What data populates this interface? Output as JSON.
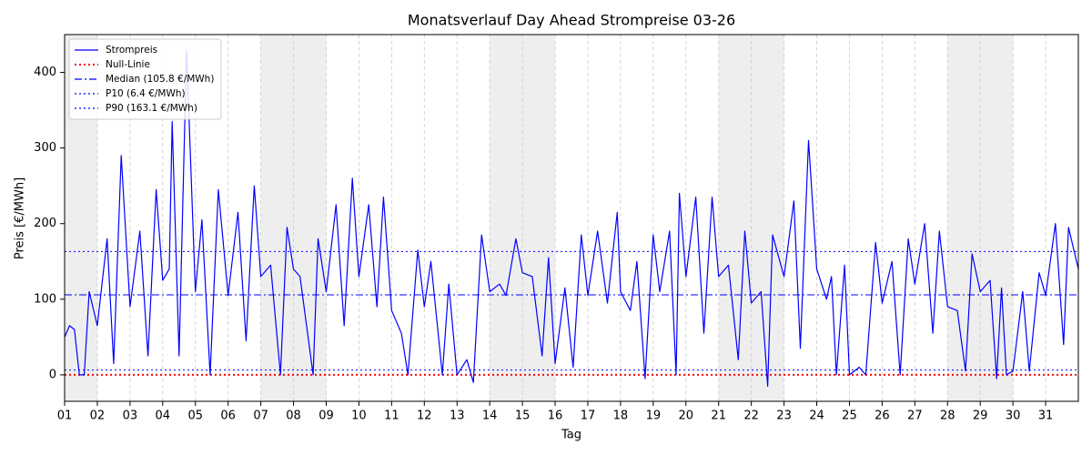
{
  "chart_data": {
    "type": "line",
    "title": "Monatsverlauf Day Ahead Strompreise 03-26",
    "xlabel": "Tag",
    "ylabel": "Preis [€/MWh]",
    "x": [
      1.0,
      1.15,
      1.3,
      1.45,
      1.6,
      1.75,
      2.0,
      2.3,
      2.5,
      2.73,
      3.0,
      3.3,
      3.55,
      3.8,
      4.0,
      4.2,
      4.29,
      4.5,
      4.73,
      5.0,
      5.2,
      5.45,
      5.7,
      6.0,
      6.3,
      6.55,
      6.8,
      7.0,
      7.3,
      7.6,
      7.8,
      8.0,
      8.2,
      8.6,
      8.75,
      9.0,
      9.3,
      9.55,
      9.8,
      10.0,
      10.3,
      10.55,
      10.75,
      11.0,
      11.3,
      11.5,
      11.8,
      12.0,
      12.2,
      12.55,
      12.75,
      13.0,
      13.3,
      13.5,
      13.75,
      14.0,
      14.3,
      14.5,
      14.8,
      15.0,
      15.3,
      15.6,
      15.8,
      16.0,
      16.3,
      16.55,
      16.8,
      17.0,
      17.3,
      17.6,
      17.9,
      18.0,
      18.3,
      18.5,
      18.75,
      19.0,
      19.2,
      19.5,
      19.7,
      19.8,
      20.0,
      20.3,
      20.55,
      20.8,
      21.0,
      21.3,
      21.6,
      21.8,
      22.0,
      22.3,
      22.5,
      22.65,
      23.0,
      23.3,
      23.5,
      23.75,
      24.0,
      24.3,
      24.45,
      24.6,
      24.85,
      25.0,
      25.3,
      25.5,
      25.8,
      26.0,
      26.3,
      26.55,
      26.8,
      27.0,
      27.3,
      27.55,
      27.75,
      28.0,
      28.3,
      28.55,
      28.75,
      29.0,
      29.3,
      29.5,
      29.65,
      29.8,
      30.0,
      30.3,
      30.5,
      30.8,
      31.0,
      31.3,
      31.55,
      31.7,
      32.0
    ],
    "series": [
      {
        "name": "Strompreis",
        "color": "#0000ff",
        "values": [
          50,
          65,
          60,
          0,
          0,
          110,
          65,
          180,
          15,
          290,
          90,
          190,
          25,
          245,
          125,
          140,
          335,
          25,
          430,
          110,
          205,
          0,
          245,
          105,
          215,
          45,
          250,
          130,
          145,
          0,
          195,
          140,
          130,
          0,
          180,
          110,
          225,
          65,
          260,
          130,
          225,
          90,
          235,
          85,
          55,
          0,
          165,
          90,
          150,
          0,
          120,
          0,
          20,
          -10,
          185,
          110,
          120,
          105,
          180,
          135,
          130,
          25,
          155,
          15,
          115,
          10,
          185,
          105,
          190,
          95,
          215,
          110,
          85,
          150,
          -5,
          185,
          110,
          190,
          0,
          240,
          130,
          235,
          55,
          235,
          130,
          145,
          20,
          190,
          95,
          110,
          -15,
          185,
          130,
          230,
          35,
          310,
          140,
          100,
          130,
          0,
          145,
          0,
          10,
          0,
          175,
          95,
          150,
          0,
          180,
          120,
          200,
          55,
          190,
          90,
          85,
          5,
          160,
          110,
          125,
          -5,
          115,
          0,
          5,
          110,
          5,
          135,
          105,
          200,
          40,
          195,
          140
        ]
      }
    ],
    "hlines": [
      {
        "name": "Null-Linie",
        "value": 0,
        "color": "#ff0000",
        "style": "dotted"
      },
      {
        "name": "Median (105.8 €/MWh)",
        "value": 105.8,
        "color": "#0000ff",
        "style": "dashdot"
      },
      {
        "name": "P10 (6.4 €/MWh)",
        "value": 6.4,
        "color": "#0000ff",
        "style": "dotted"
      },
      {
        "name": "P90 (163.1 €/MWh)",
        "value": 163.1,
        "color": "#0000ff",
        "style": "dotted"
      }
    ],
    "weekends": [
      [
        1,
        2
      ],
      [
        7,
        9
      ],
      [
        14,
        16
      ],
      [
        21,
        23
      ],
      [
        28,
        30
      ]
    ],
    "xlim": [
      1,
      32
    ],
    "ylim": [
      -35,
      450
    ],
    "xticks": [
      {
        "value": 1,
        "label": "01"
      },
      {
        "value": 2,
        "label": "02"
      },
      {
        "value": 3,
        "label": "03"
      },
      {
        "value": 4,
        "label": "04"
      },
      {
        "value": 5,
        "label": "05"
      },
      {
        "value": 6,
        "label": "06"
      },
      {
        "value": 7,
        "label": "07"
      },
      {
        "value": 8,
        "label": "08"
      },
      {
        "value": 9,
        "label": "09"
      },
      {
        "value": 10,
        "label": "10"
      },
      {
        "value": 11,
        "label": "11"
      },
      {
        "value": 12,
        "label": "12"
      },
      {
        "value": 13,
        "label": "13"
      },
      {
        "value": 14,
        "label": "14"
      },
      {
        "value": 15,
        "label": "15"
      },
      {
        "value": 16,
        "label": "16"
      },
      {
        "value": 17,
        "label": "17"
      },
      {
        "value": 18,
        "label": "18"
      },
      {
        "value": 19,
        "label": "19"
      },
      {
        "value": 20,
        "label": "20"
      },
      {
        "value": 21,
        "label": "21"
      },
      {
        "value": 22,
        "label": "22"
      },
      {
        "value": 23,
        "label": "23"
      },
      {
        "value": 24,
        "label": "24"
      },
      {
        "value": 25,
        "label": "25"
      },
      {
        "value": 26,
        "label": "26"
      },
      {
        "value": 27,
        "label": "27"
      },
      {
        "value": 28,
        "label": "28"
      },
      {
        "value": 29,
        "label": "29"
      },
      {
        "value": 30,
        "label": "30"
      },
      {
        "value": 31,
        "label": "31"
      }
    ],
    "yticks": [
      0,
      100,
      200,
      300,
      400
    ],
    "grid": true,
    "legend": "upper left"
  }
}
